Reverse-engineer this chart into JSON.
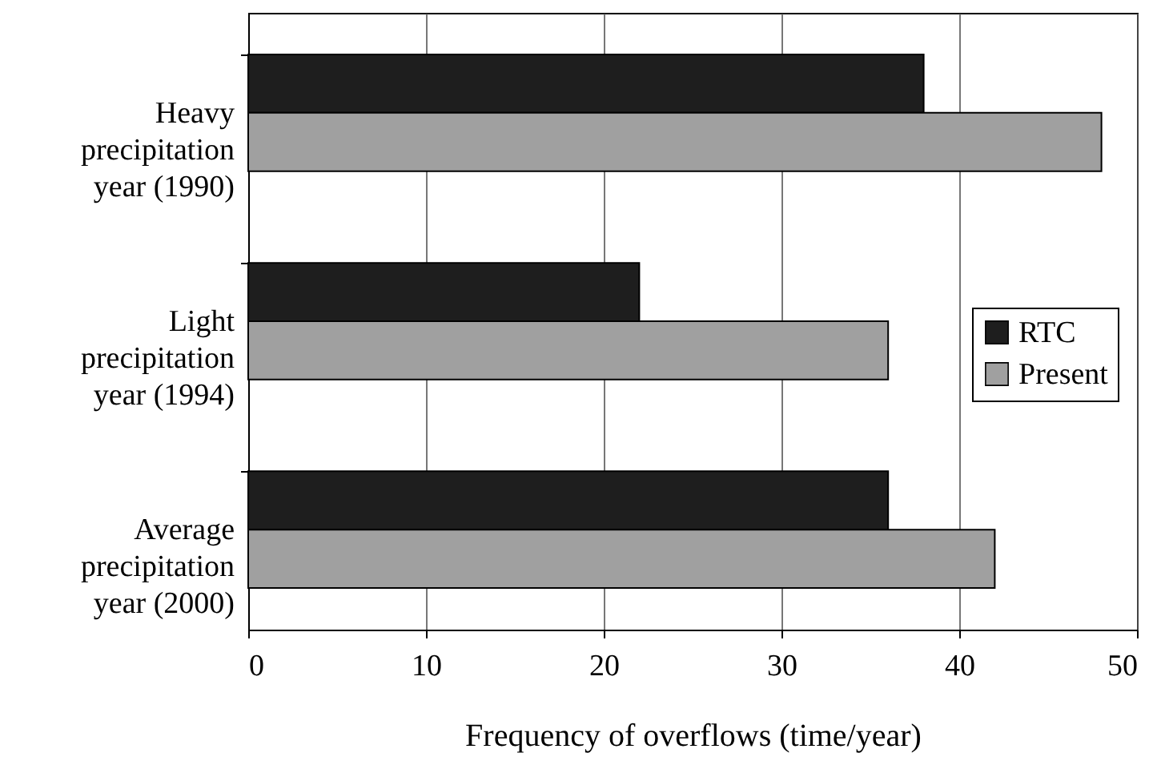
{
  "chart_data": {
    "type": "bar",
    "orientation": "horizontal",
    "xlabel": "Frequency of overflows (time/year)",
    "categories": [
      "Heavy precipitation year (1990)",
      "Light precipitation year (1994)",
      "Average precipitation year (2000)"
    ],
    "series": [
      {
        "name": "RTC",
        "color": "#1e1e1e",
        "values": [
          38,
          22,
          36
        ]
      },
      {
        "name": "Present",
        "color": "#a0a0a0",
        "values": [
          48,
          36,
          42
        ]
      }
    ],
    "xlim": [
      0,
      50
    ],
    "xticks": [
      0,
      10,
      20,
      30,
      40,
      50
    ],
    "grid": "x",
    "legend": "right"
  }
}
